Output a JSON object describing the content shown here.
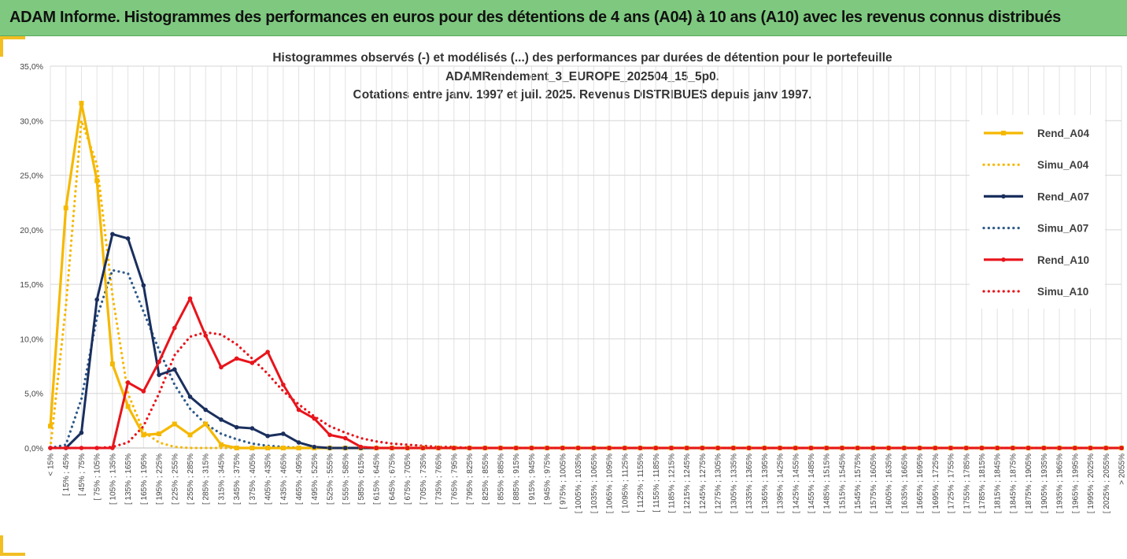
{
  "banner": {
    "title": "ADAM Informe. Histogrammes des performances en euros pour des détentions de 4 ans (A04) à 10 ans (A10) avec les revenus connus distribués"
  },
  "chart_data": {
    "type": "line",
    "title_lines": [
      "Histogrammes observés (-) et modélisés (...) des performances par durées de détention pour le portefeuille",
      "ADAMRendement_3_EUROPE_202504_15_5p0.",
      "Cotations entre janv. 1997 et juil. 2025. Revenus DISTRIBUES depuis janv 1997."
    ],
    "ylim": [
      0,
      35
    ],
    "y_ticks": [
      "0,0%",
      "5,0%",
      "10,0%",
      "15,0%",
      "20,0%",
      "25,0%",
      "30,0%",
      "35,0%"
    ],
    "grid": true,
    "legend_position": "right",
    "categories": [
      "< 15%",
      "[ 15% ; 45%",
      "[ 45% ; 75%",
      "[ 75% ; 105%",
      "[ 105% ; 135%",
      "[ 135% ; 165%",
      "[ 165% ; 195%",
      "[ 195% ; 225%",
      "[ 225% ; 255%",
      "[ 255% ; 285%",
      "[ 285% ; 315%",
      "[ 315% ; 345%",
      "[ 345% ; 375%",
      "[ 375% ; 405%",
      "[ 405% ; 435%",
      "[ 435% ; 465%",
      "[ 465% ; 495%",
      "[ 495% ; 525%",
      "[ 525% ; 555%",
      "[ 555% ; 585%",
      "[ 585% ; 615%",
      "[ 615% ; 645%",
      "[ 645% ; 675%",
      "[ 675% ; 705%",
      "[ 705% ; 735%",
      "[ 735% ; 765%",
      "[ 765% ; 795%",
      "[ 795% ; 825%",
      "[ 825% ; 855%",
      "[ 855% ; 885%",
      "[ 885% ; 915%",
      "[ 915% ; 945%",
      "[ 945% ; 975%",
      "[ 975% ; 1005%",
      "[ 1005% ; 1035%",
      "[ 1035% ; 1065%",
      "[ 1065% ; 1095%",
      "[ 1095% ; 1125%",
      "[ 1125% ; 1155%",
      "[ 1155% ; 1185%",
      "[ 1185% ; 1215%",
      "[ 1215% ; 1245%",
      "[ 1245% ; 1275%",
      "[ 1275% ; 1305%",
      "[ 1305% ; 1335%",
      "[ 1335% ; 1365%",
      "[ 1365% ; 1395%",
      "[ 1395% ; 1425%",
      "[ 1425% ; 1455%",
      "[ 1455% ; 1485%",
      "[ 1485% ; 1515%",
      "[ 1515% ; 1545%",
      "[ 1545% ; 1575%",
      "[ 1575% ; 1605%",
      "[ 1605% ; 1635%",
      "[ 1635% ; 1665%",
      "[ 1665% ; 1695%",
      "[ 1695% ; 1725%",
      "[ 1725% ; 1755%",
      "[ 1755% ; 1785%",
      "[ 1785% ; 1815%",
      "[ 1815% ; 1845%",
      "[ 1845% ; 1875%",
      "[ 1875% ; 1905%",
      "[ 1905% ; 1935%",
      "[ 1935% ; 1965%",
      "[ 1965% ; 1995%",
      "[ 1995% ; 2025%",
      "[ 2025% ; 2055%",
      "> 2055%"
    ],
    "series": [
      {
        "name": "Rend_A04",
        "style": "solid",
        "marker": "square",
        "color": "#f5b800",
        "values": [
          2.0,
          22.0,
          31.6,
          24.5,
          7.7,
          3.8,
          1.2,
          1.3,
          2.2,
          1.2,
          2.2,
          0.3,
          0.0,
          0.0,
          0.0,
          0.0,
          0.0,
          0.0,
          0.0,
          0.0,
          0.0,
          0.0,
          0.0,
          0.0,
          0.0,
          0.0,
          0.0,
          0.0,
          0.0,
          0.0,
          0.0,
          0.0,
          0.0,
          0.0,
          0.0,
          0.0,
          0.0,
          0.0,
          0.0,
          0.0,
          0.0,
          0.0,
          0.0,
          0.0,
          0.0,
          0.0,
          0.0,
          0.0,
          0.0,
          0.0,
          0.0,
          0.0,
          0.0,
          0.0,
          0.0,
          0.0,
          0.0,
          0.0,
          0.0,
          0.0,
          0.0,
          0.0,
          0.0,
          0.0,
          0.0,
          0.0,
          0.0,
          0.0,
          0.0,
          0.0
        ]
      },
      {
        "name": "Simu_A04",
        "style": "dotted",
        "marker": "none",
        "color": "#f5b800",
        "values": [
          0.0,
          13.0,
          30.0,
          26.0,
          14.0,
          5.0,
          1.5,
          0.5,
          0.1,
          0.0,
          0.0,
          0.0,
          0.0,
          0.0,
          0.0,
          0.0,
          0.0,
          0.0,
          0.0,
          0.0,
          0.0,
          0.0,
          0.0,
          0.0,
          0.0,
          0.0,
          0.0,
          0.0,
          0.0,
          0.0,
          0.0,
          0.0,
          0.0,
          0.0,
          0.0,
          0.0,
          0.0,
          0.0,
          0.0,
          0.0,
          0.0,
          0.0,
          0.0,
          0.0,
          0.0,
          0.0,
          0.0,
          0.0,
          0.0,
          0.0,
          0.0,
          0.0,
          0.0,
          0.0,
          0.0,
          0.0,
          0.0,
          0.0,
          0.0,
          0.0,
          0.0,
          0.0,
          0.0,
          0.0,
          0.0,
          0.0,
          0.0,
          0.0,
          0.0,
          0.0
        ]
      },
      {
        "name": "Rend_A07",
        "style": "solid",
        "marker": "circle",
        "color": "#1a2f5e",
        "values": [
          0.0,
          0.0,
          1.4,
          13.6,
          19.6,
          19.2,
          14.9,
          6.7,
          7.2,
          4.7,
          3.5,
          2.6,
          1.9,
          1.8,
          1.1,
          1.3,
          0.5,
          0.1,
          0.0,
          0.0,
          0.0,
          0.0,
          0.0,
          0.0,
          0.0,
          0.0,
          0.0,
          0.0,
          0.0,
          0.0,
          0.0,
          0.0,
          0.0,
          0.0,
          0.0,
          0.0,
          0.0,
          0.0,
          0.0,
          0.0,
          0.0,
          0.0,
          0.0,
          0.0,
          0.0,
          0.0,
          0.0,
          0.0,
          0.0,
          0.0,
          0.0,
          0.0,
          0.0,
          0.0,
          0.0,
          0.0,
          0.0,
          0.0,
          0.0,
          0.0,
          0.0,
          0.0,
          0.0,
          0.0,
          0.0,
          0.0,
          0.0,
          0.0,
          0.0,
          0.0
        ]
      },
      {
        "name": "Simu_A07",
        "style": "dotted",
        "marker": "none",
        "color": "#2e5a8a",
        "values": [
          0.0,
          0.3,
          4.5,
          12.0,
          16.3,
          16.0,
          12.5,
          9.0,
          5.8,
          3.6,
          2.2,
          1.3,
          0.8,
          0.4,
          0.2,
          0.1,
          0.0,
          0.0,
          0.0,
          0.0,
          0.0,
          0.0,
          0.0,
          0.0,
          0.0,
          0.0,
          0.0,
          0.0,
          0.0,
          0.0,
          0.0,
          0.0,
          0.0,
          0.0,
          0.0,
          0.0,
          0.0,
          0.0,
          0.0,
          0.0,
          0.0,
          0.0,
          0.0,
          0.0,
          0.0,
          0.0,
          0.0,
          0.0,
          0.0,
          0.0,
          0.0,
          0.0,
          0.0,
          0.0,
          0.0,
          0.0,
          0.0,
          0.0,
          0.0,
          0.0,
          0.0,
          0.0,
          0.0,
          0.0,
          0.0,
          0.0,
          0.0,
          0.0,
          0.0,
          0.0
        ]
      },
      {
        "name": "Rend_A10",
        "style": "solid",
        "marker": "circle",
        "color": "#e8141b",
        "values": [
          0.0,
          0.0,
          0.0,
          0.0,
          0.0,
          6.0,
          5.2,
          7.9,
          11.0,
          13.7,
          10.3,
          7.4,
          8.2,
          7.8,
          8.8,
          5.8,
          3.5,
          2.7,
          1.2,
          0.9,
          0.1,
          0.0,
          0.0,
          0.0,
          0.0,
          0.0,
          0.0,
          0.0,
          0.0,
          0.0,
          0.0,
          0.0,
          0.0,
          0.0,
          0.0,
          0.0,
          0.0,
          0.0,
          0.0,
          0.0,
          0.0,
          0.0,
          0.0,
          0.0,
          0.0,
          0.0,
          0.0,
          0.0,
          0.0,
          0.0,
          0.0,
          0.0,
          0.0,
          0.0,
          0.0,
          0.0,
          0.0,
          0.0,
          0.0,
          0.0,
          0.0,
          0.0,
          0.0,
          0.0,
          0.0,
          0.0,
          0.0,
          0.0,
          0.0,
          0.0
        ]
      },
      {
        "name": "Simu_A10",
        "style": "dotted",
        "marker": "none",
        "color": "#e8141b",
        "values": [
          0.0,
          0.0,
          0.0,
          0.0,
          0.1,
          0.5,
          2.0,
          5.0,
          8.5,
          10.2,
          10.6,
          10.4,
          9.5,
          8.2,
          6.8,
          5.2,
          4.0,
          2.9,
          2.0,
          1.4,
          0.9,
          0.6,
          0.4,
          0.3,
          0.2,
          0.1,
          0.1,
          0.0,
          0.0,
          0.0,
          0.0,
          0.0,
          0.0,
          0.0,
          0.0,
          0.0,
          0.0,
          0.0,
          0.0,
          0.0,
          0.0,
          0.0,
          0.0,
          0.0,
          0.0,
          0.0,
          0.0,
          0.0,
          0.0,
          0.0,
          0.0,
          0.0,
          0.0,
          0.0,
          0.0,
          0.0,
          0.0,
          0.0,
          0.0,
          0.0,
          0.0,
          0.0,
          0.0,
          0.0,
          0.0,
          0.0,
          0.0,
          0.0,
          0.0,
          0.0
        ]
      }
    ]
  }
}
